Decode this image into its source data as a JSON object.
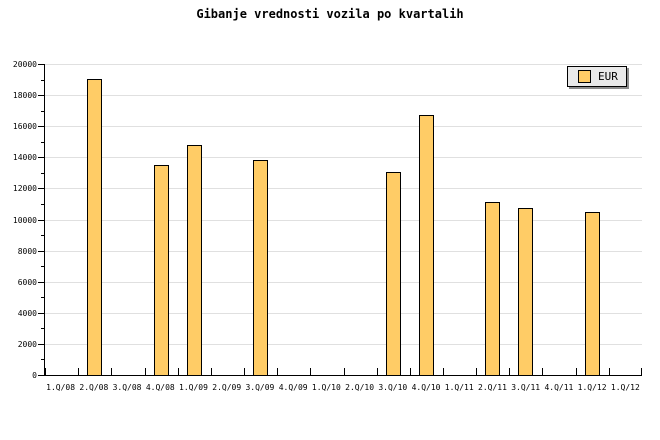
{
  "colors": {
    "background": "#FFFFFF",
    "bar_fill": "#FFCC66",
    "bar_border": "#000000",
    "gridline": "#E0E0E0",
    "axis": "#000000",
    "text": "#000000",
    "legend_bg": "#E9E9E9",
    "legend_border": "#000000",
    "legend_shadow": "#8C8C8C"
  },
  "legend": {
    "label": "EUR",
    "swatch_icon": "bar-color-swatch"
  },
  "chart_data": {
    "type": "bar",
    "title": "Gibanje vrednosti vozila po kvartalih",
    "categories": [
      "1.Q/08",
      "2.Q/08",
      "3.Q/08",
      "4.Q/08",
      "1.Q/09",
      "2.Q/09",
      "3.Q/09",
      "4.Q/09",
      "1.Q/10",
      "2.Q/10",
      "3.Q/10",
      "4.Q/10",
      "1.Q/11",
      "2.Q/11",
      "3.Q/11",
      "4.Q/11",
      "1.Q/12",
      "1.Q/12"
    ],
    "series": [
      {
        "name": "EUR",
        "values": [
          null,
          19050,
          null,
          13500,
          14800,
          null,
          13850,
          null,
          null,
          null,
          13050,
          16700,
          null,
          11150,
          10750,
          null,
          10500,
          null
        ]
      }
    ],
    "xlabel": "",
    "ylabel": "",
    "ylim": [
      0,
      20000
    ],
    "y_major_step": 2000,
    "y_minor_step": 1000,
    "grid": "horizontal-major",
    "legend_position": "top-right"
  }
}
